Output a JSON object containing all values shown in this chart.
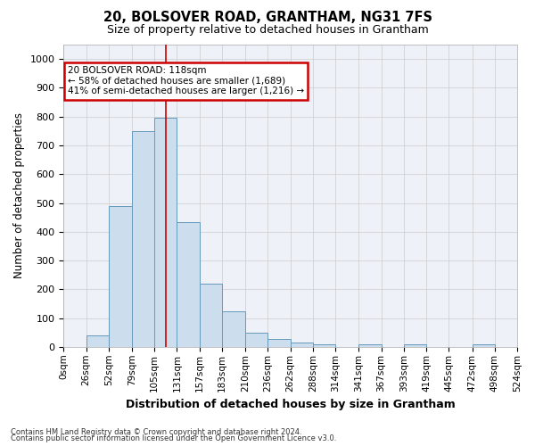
{
  "title": "20, BOLSOVER ROAD, GRANTHAM, NG31 7FS",
  "subtitle": "Size of property relative to detached houses in Grantham",
  "xlabel": "Distribution of detached houses by size in Grantham",
  "ylabel": "Number of detached properties",
  "footnote1": "Contains HM Land Registry data © Crown copyright and database right 2024.",
  "footnote2": "Contains public sector information licensed under the Open Government Licence v3.0.",
  "property_size": 118,
  "annotation_line1": "20 BOLSOVER ROAD: 118sqm",
  "annotation_line2": "← 58% of detached houses are smaller (1,689)",
  "annotation_line3": "41% of semi-detached houses are larger (1,216) →",
  "bar_edges": [
    0,
    26,
    52,
    79,
    105,
    131,
    157,
    183,
    210,
    236,
    262,
    288,
    314,
    341,
    367,
    393,
    419,
    445,
    472,
    498,
    524
  ],
  "bar_heights": [
    0,
    40,
    490,
    750,
    795,
    435,
    220,
    125,
    50,
    27,
    15,
    10,
    0,
    8,
    0,
    8,
    0,
    0,
    8,
    0,
    0
  ],
  "bar_facecolor": "#ccdded",
  "bar_edgecolor": "#6699bb",
  "grid_color": "#cccccc",
  "background_color": "#eef2f8",
  "annotation_box_edgecolor": "#cc0000",
  "vline_color": "#cc0000",
  "ylim": [
    0,
    1050
  ],
  "yticks": [
    0,
    100,
    200,
    300,
    400,
    500,
    600,
    700,
    800,
    900,
    1000
  ],
  "figsize": [
    6.0,
    5.0
  ],
  "dpi": 100
}
